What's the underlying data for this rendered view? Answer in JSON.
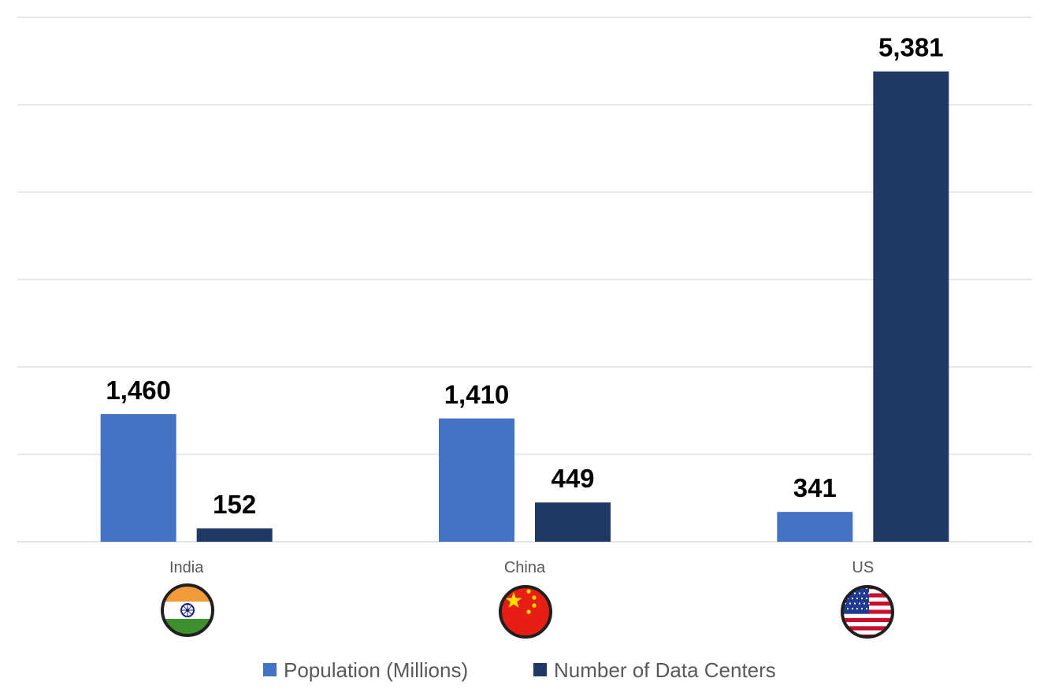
{
  "chart_data": {
    "type": "bar",
    "categories": [
      "India",
      "China",
      "US"
    ],
    "series": [
      {
        "name": "Population (Millions)",
        "values": [
          1460,
          1410,
          341
        ],
        "labels": [
          "1,460",
          "1,410",
          "341"
        ],
        "color": "#4472c4"
      },
      {
        "name": "Number of Data Centers",
        "values": [
          152,
          449,
          5381
        ],
        "labels": [
          "152",
          "449",
          "5,381"
        ],
        "color": "#203864"
      }
    ],
    "ylim": [
      0,
      6000
    ],
    "grid": true,
    "legend_position": "bottom",
    "category_icons": [
      "india-flag-icon",
      "china-flag-icon",
      "us-flag-icon"
    ]
  }
}
